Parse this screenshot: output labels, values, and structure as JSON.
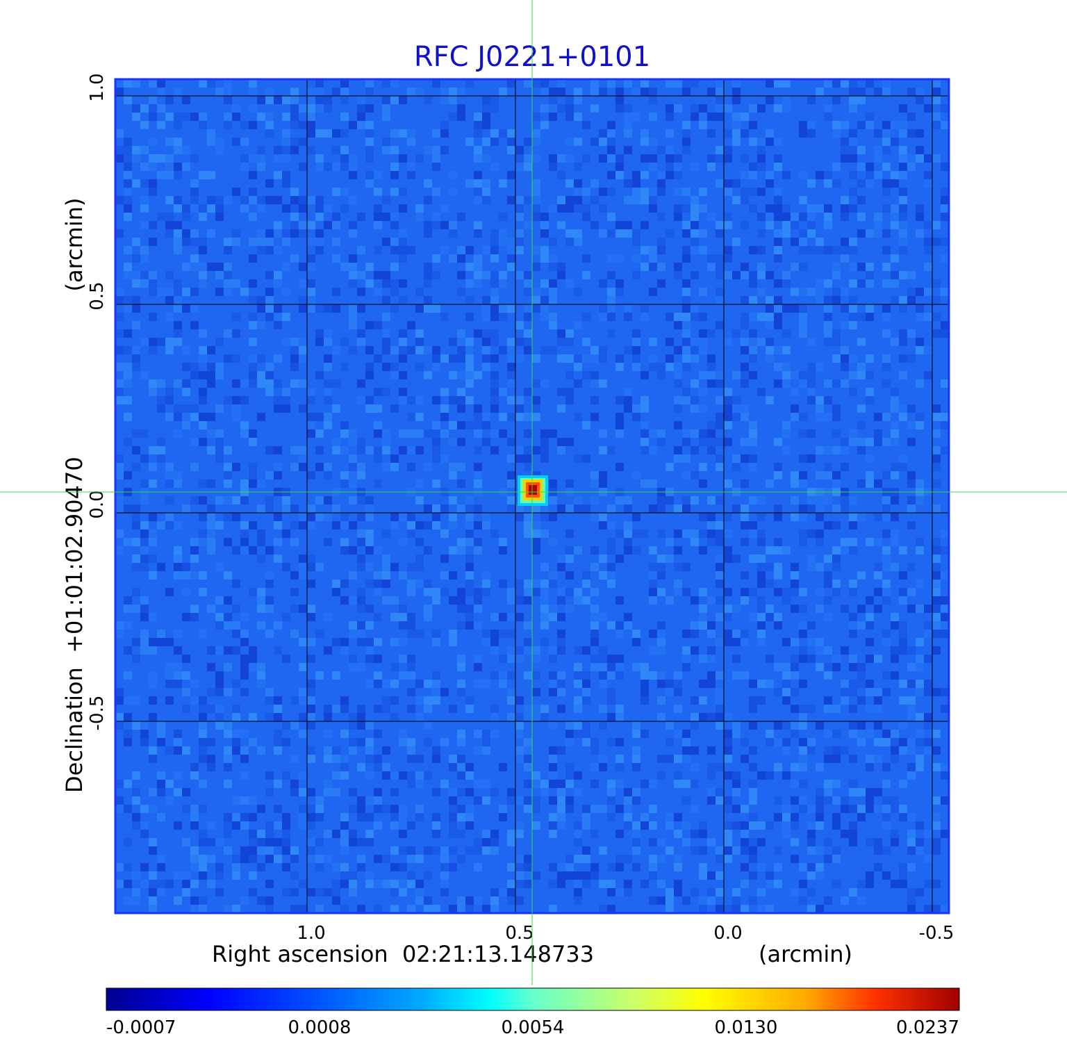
{
  "chart_data": {
    "type": "heatmap",
    "title": "RFC J0221+0101",
    "xlabel": "Right ascension  02:21:13.148733",
    "xlabel_unit": "(arcmin)",
    "ylabel": "Declination  +01:01:02.90470",
    "ylabel_unit": "(arcmin)",
    "x_ticks": [
      "1.0",
      "0.5",
      "0.0",
      "-0.5"
    ],
    "y_ticks": [
      "1.0",
      "0.5",
      "0.0",
      "-0.5"
    ],
    "x_tick_values": [
      1.0,
      0.5,
      0.0,
      -0.5
    ],
    "y_tick_values": [
      1.0,
      0.5,
      0.0,
      -0.5
    ],
    "xlim": [
      1.46,
      -0.54
    ],
    "ylim": [
      -0.96,
      1.04
    ],
    "grid": true,
    "crosshair": {
      "x": 0.46,
      "y": 0.05,
      "color": "#33dd33"
    },
    "source_peak": {
      "x": 0.46,
      "y": 0.05,
      "value": 0.0237
    },
    "colorbar": {
      "ticks": [
        "-0.0007",
        "0.0008",
        "0.0054",
        "0.0130",
        "0.0237"
      ],
      "tick_values": [
        -0.0007,
        0.0008,
        0.0054,
        0.013,
        0.0237
      ],
      "colormap": "jet"
    },
    "colors": {
      "title": "#1010cc",
      "frame": "#1a33ff",
      "background_emission": "#1f66f0",
      "grid": "#000000"
    }
  }
}
